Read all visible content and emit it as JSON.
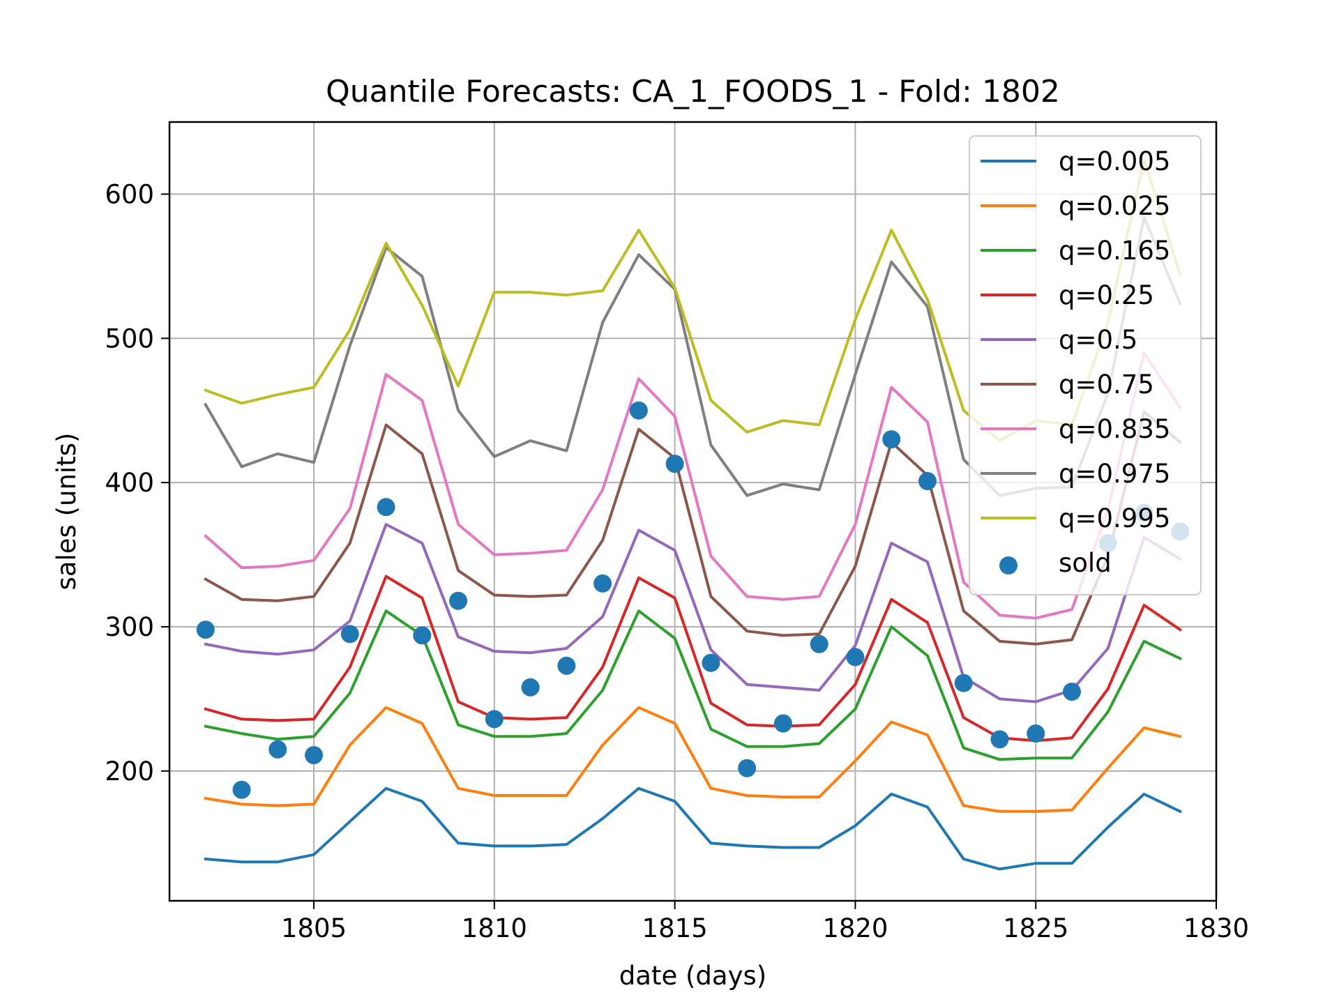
{
  "chart_data": {
    "type": "line",
    "title": "Quantile Forecasts: CA_1_FOODS_1 - Fold: 1802",
    "xlabel": "date (days)",
    "ylabel": "sales (units)",
    "xlim": [
      1801,
      1830
    ],
    "ylim": [
      110,
      650
    ],
    "xticks": [
      1805,
      1810,
      1815,
      1820,
      1825,
      1830
    ],
    "yticks": [
      200,
      300,
      400,
      500,
      600
    ],
    "grid": true,
    "legend_position": "upper right",
    "x": [
      1802,
      1803,
      1804,
      1805,
      1806,
      1807,
      1808,
      1809,
      1810,
      1811,
      1812,
      1813,
      1814,
      1815,
      1816,
      1817,
      1818,
      1819,
      1820,
      1821,
      1822,
      1823,
      1824,
      1825,
      1826,
      1827,
      1828,
      1829
    ],
    "series": [
      {
        "name": "q=0.005",
        "color": "#1f77b4",
        "values": [
          139,
          137,
          137,
          142,
          165,
          188,
          179,
          150,
          148,
          148,
          149,
          167,
          188,
          179,
          150,
          148,
          147,
          147,
          162,
          184,
          175,
          139,
          132,
          136,
          136,
          161,
          184,
          172
        ]
      },
      {
        "name": "q=0.025",
        "color": "#ff7f0e",
        "values": [
          181,
          177,
          176,
          177,
          218,
          244,
          233,
          188,
          183,
          183,
          183,
          218,
          244,
          233,
          188,
          183,
          182,
          182,
          207,
          234,
          225,
          176,
          172,
          172,
          173,
          202,
          230,
          224
        ]
      },
      {
        "name": "q=0.165",
        "color": "#2ca02c",
        "values": [
          231,
          226,
          222,
          224,
          254,
          311,
          294,
          232,
          224,
          224,
          226,
          256,
          311,
          292,
          229,
          217,
          217,
          219,
          243,
          300,
          280,
          216,
          208,
          209,
          209,
          241,
          290,
          278
        ]
      },
      {
        "name": "q=0.25",
        "color": "#d62728",
        "values": [
          243,
          236,
          235,
          236,
          272,
          335,
          320,
          248,
          237,
          236,
          237,
          272,
          334,
          320,
          247,
          232,
          231,
          232,
          260,
          319,
          303,
          237,
          223,
          221,
          223,
          257,
          315,
          298
        ]
      },
      {
        "name": "q=0.5",
        "color": "#9467bd",
        "values": [
          288,
          283,
          281,
          284,
          304,
          371,
          358,
          293,
          283,
          282,
          285,
          307,
          367,
          353,
          284,
          260,
          258,
          256,
          287,
          358,
          345,
          265,
          250,
          248,
          256,
          285,
          362,
          347
        ]
      },
      {
        "name": "q=0.75",
        "color": "#8c564b",
        "values": [
          333,
          319,
          318,
          321,
          358,
          440,
          420,
          339,
          322,
          321,
          322,
          360,
          437,
          417,
          321,
          297,
          294,
          295,
          342,
          428,
          405,
          311,
          290,
          288,
          291,
          349,
          449,
          428
        ]
      },
      {
        "name": "q=0.835",
        "color": "#e377c2",
        "values": [
          363,
          341,
          342,
          346,
          382,
          475,
          457,
          371,
          350,
          351,
          353,
          395,
          472,
          446,
          349,
          321,
          319,
          321,
          371,
          466,
          442,
          331,
          308,
          306,
          312,
          381,
          490,
          452
        ]
      },
      {
        "name": "q=0.975",
        "color": "#7f7f7f",
        "values": [
          454,
          411,
          420,
          414,
          495,
          563,
          543,
          450,
          418,
          429,
          422,
          511,
          558,
          534,
          426,
          391,
          399,
          395,
          475,
          553,
          522,
          416,
          391,
          396,
          397,
          462,
          584,
          524
        ]
      },
      {
        "name": "q=0.995",
        "color": "#bcbd22",
        "values": [
          464,
          455,
          461,
          466,
          506,
          566,
          523,
          467,
          532,
          532,
          530,
          533,
          575,
          535,
          457,
          435,
          443,
          440,
          513,
          575,
          527,
          450,
          429,
          443,
          440,
          511,
          624,
          544
        ]
      }
    ],
    "scatter": {
      "name": "sold",
      "color": "#1f77b4",
      "values": [
        298,
        187,
        215,
        211,
        295,
        383,
        294,
        318,
        236,
        258,
        273,
        330,
        450,
        413,
        275,
        202,
        233,
        288,
        279,
        430,
        401,
        261,
        222,
        226,
        255,
        358,
        379,
        366
      ]
    }
  }
}
